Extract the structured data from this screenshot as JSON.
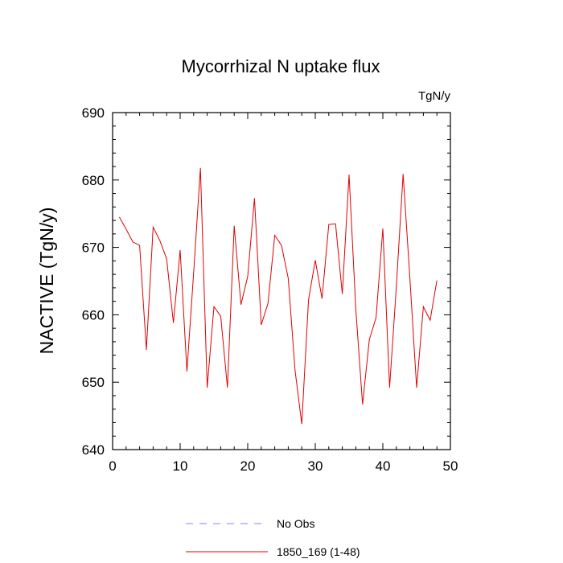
{
  "chart_data": {
    "type": "line",
    "title": "Mycorrhizal N uptake flux",
    "units": "TgN/y",
    "xlabel": "",
    "ylabel": "NACTIVE  (TgN/y)",
    "xlim": [
      0,
      50
    ],
    "ylim": [
      640,
      690
    ],
    "x_ticks": [
      0,
      10,
      20,
      30,
      40,
      50
    ],
    "y_ticks": [
      640,
      650,
      660,
      670,
      680,
      690
    ],
    "x_minor_step": 2,
    "y_minor_step": 2,
    "grid": false,
    "legend_position": "bottom",
    "series": [
      {
        "name": "No Obs",
        "color": "#8080ff",
        "dash": "dashed",
        "x": [],
        "y": []
      },
      {
        "name": "1850_169 (1-48)",
        "color": "#e00000",
        "dash": "solid",
        "x": [
          1,
          2,
          3,
          4,
          5,
          6,
          7,
          8,
          9,
          10,
          11,
          12,
          13,
          14,
          15,
          16,
          17,
          18,
          19,
          20,
          21,
          22,
          23,
          24,
          25,
          26,
          27,
          28,
          29,
          30,
          31,
          32,
          33,
          34,
          35,
          36,
          37,
          38,
          39,
          40,
          41,
          42,
          43,
          44,
          45,
          46,
          47,
          48
        ],
        "y": [
          674.5,
          672.7,
          670.8,
          670.3,
          654.8,
          673.0,
          671.0,
          668.3,
          658.8,
          669.6,
          651.6,
          666.3,
          681.8,
          649.2,
          661.2,
          659.8,
          649.2,
          673.2,
          661.5,
          665.7,
          677.3,
          658.5,
          661.7,
          671.8,
          670.3,
          665.4,
          651.8,
          643.8,
          662.2,
          668.1,
          662.4,
          673.4,
          673.5,
          663.1,
          680.8,
          660.8,
          646.7,
          656.3,
          659.6,
          672.8,
          649.2,
          664.2,
          680.9,
          665.5,
          649.2,
          661.2,
          659.2,
          665.1
        ]
      }
    ]
  }
}
